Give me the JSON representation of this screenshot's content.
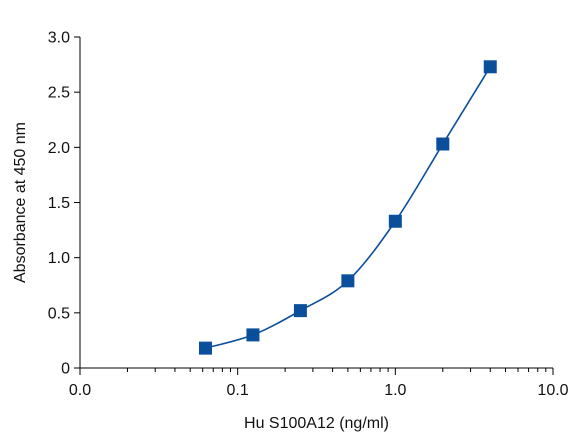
{
  "chart_data": {
    "type": "scatter",
    "xlabel": "Hu S100A12 (ng/ml)",
    "ylabel": "Absorbance at 450 nm",
    "x_scale": "log",
    "xlim": [
      0.01,
      10
    ],
    "ylim": [
      0,
      3.0
    ],
    "x_ticks": [
      {
        "value": 0.01,
        "label": "0.0"
      },
      {
        "value": 0.1,
        "label": "0.1"
      },
      {
        "value": 1,
        "label": "1.0"
      },
      {
        "value": 10,
        "label": "10.0"
      }
    ],
    "y_ticks": [
      {
        "value": 0,
        "label": "0"
      },
      {
        "value": 0.5,
        "label": "0.5"
      },
      {
        "value": 1.0,
        "label": "1.0"
      },
      {
        "value": 1.5,
        "label": "1.5"
      },
      {
        "value": 2.0,
        "label": "2.0"
      },
      {
        "value": 2.5,
        "label": "2.5"
      },
      {
        "value": 3.0,
        "label": "3.0"
      }
    ],
    "grid": false,
    "series": [
      {
        "marker": "square",
        "color": "#0b4f9c",
        "points": [
          {
            "x": 0.0625,
            "y": 0.18
          },
          {
            "x": 0.125,
            "y": 0.3
          },
          {
            "x": 0.25,
            "y": 0.52
          },
          {
            "x": 0.5,
            "y": 0.79
          },
          {
            "x": 1,
            "y": 1.33
          },
          {
            "x": 2,
            "y": 2.03
          },
          {
            "x": 4,
            "y": 2.73
          }
        ]
      }
    ]
  }
}
